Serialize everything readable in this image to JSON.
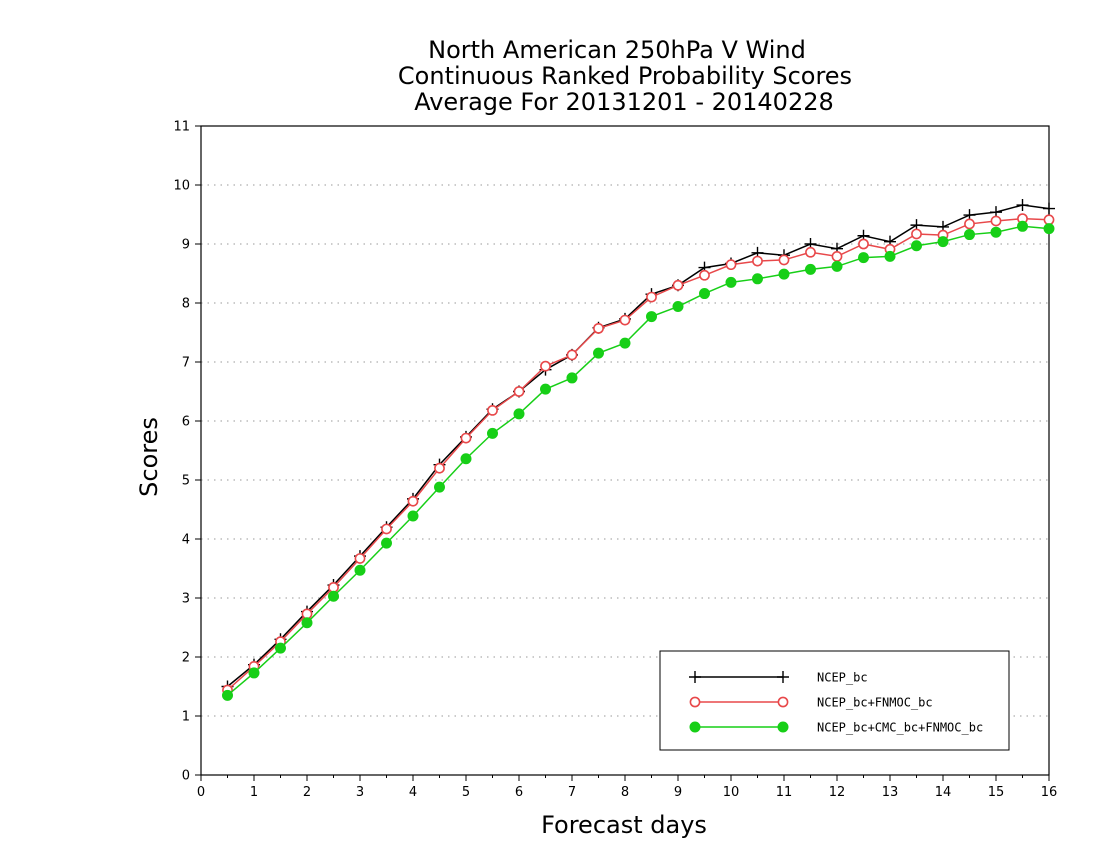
{
  "chart_data": {
    "type": "line",
    "title": [
      "North American 250hPa V Wind",
      "Continuous Ranked Probability Scores",
      "Average For 20131201 - 20140228"
    ],
    "xlabel": "Forecast days",
    "ylabel": "Scores",
    "xlim": [
      0,
      16
    ],
    "ylim": [
      0,
      11
    ],
    "x_ticks": [
      "0",
      "1",
      "2",
      "3",
      "4",
      "5",
      "6",
      "7",
      "8",
      "9",
      "10",
      "11",
      "12",
      "13",
      "14",
      "15",
      "16"
    ],
    "y_ticks": [
      "0",
      "1",
      "2",
      "3",
      "4",
      "5",
      "6",
      "7",
      "8",
      "9",
      "10",
      "11"
    ],
    "grid": "horizontal dotted",
    "legend_position": "bottom-right",
    "x": [
      0.5,
      1,
      1.5,
      2,
      2.5,
      3,
      3.5,
      4,
      4.5,
      5,
      5.5,
      6,
      6.5,
      7,
      7.5,
      8,
      8.5,
      9,
      9.5,
      10,
      10.5,
      11,
      11.5,
      12,
      12.5,
      13,
      13.5,
      14,
      14.5,
      15,
      15.5,
      16
    ],
    "series": [
      {
        "name": "NCEP_bc",
        "color": "#000000",
        "marker": "plus",
        "values": [
          1.5,
          1.87,
          2.3,
          2.77,
          3.22,
          3.71,
          4.2,
          4.68,
          5.26,
          5.73,
          6.2,
          6.5,
          6.87,
          7.12,
          7.58,
          7.73,
          8.15,
          8.3,
          8.6,
          8.67,
          8.85,
          8.81,
          9.0,
          8.92,
          9.14,
          9.04,
          9.32,
          9.29,
          9.49,
          9.54,
          9.66,
          9.6
        ]
      },
      {
        "name": "NCEP_bc+FNMOC_bc",
        "color": "#e8484a",
        "marker": "open-circle",
        "values": [
          1.44,
          1.84,
          2.26,
          2.73,
          3.18,
          3.67,
          4.17,
          4.64,
          5.2,
          5.71,
          6.18,
          6.5,
          6.93,
          7.12,
          7.57,
          7.71,
          8.1,
          8.3,
          8.47,
          8.65,
          8.71,
          8.73,
          8.86,
          8.79,
          9.0,
          8.91,
          9.17,
          9.15,
          9.34,
          9.39,
          9.43,
          9.41
        ]
      },
      {
        "name": "NCEP_bc+CMC_bc+FNMOC_bc",
        "color": "#17cf17",
        "marker": "filled-circle",
        "values": [
          1.35,
          1.73,
          2.15,
          2.58,
          3.03,
          3.47,
          3.93,
          4.39,
          4.88,
          5.36,
          5.79,
          6.12,
          6.54,
          6.73,
          7.15,
          7.32,
          7.77,
          7.94,
          8.16,
          8.35,
          8.41,
          8.49,
          8.57,
          8.62,
          8.77,
          8.79,
          8.97,
          9.04,
          9.16,
          9.2,
          9.3,
          9.26
        ]
      }
    ]
  }
}
